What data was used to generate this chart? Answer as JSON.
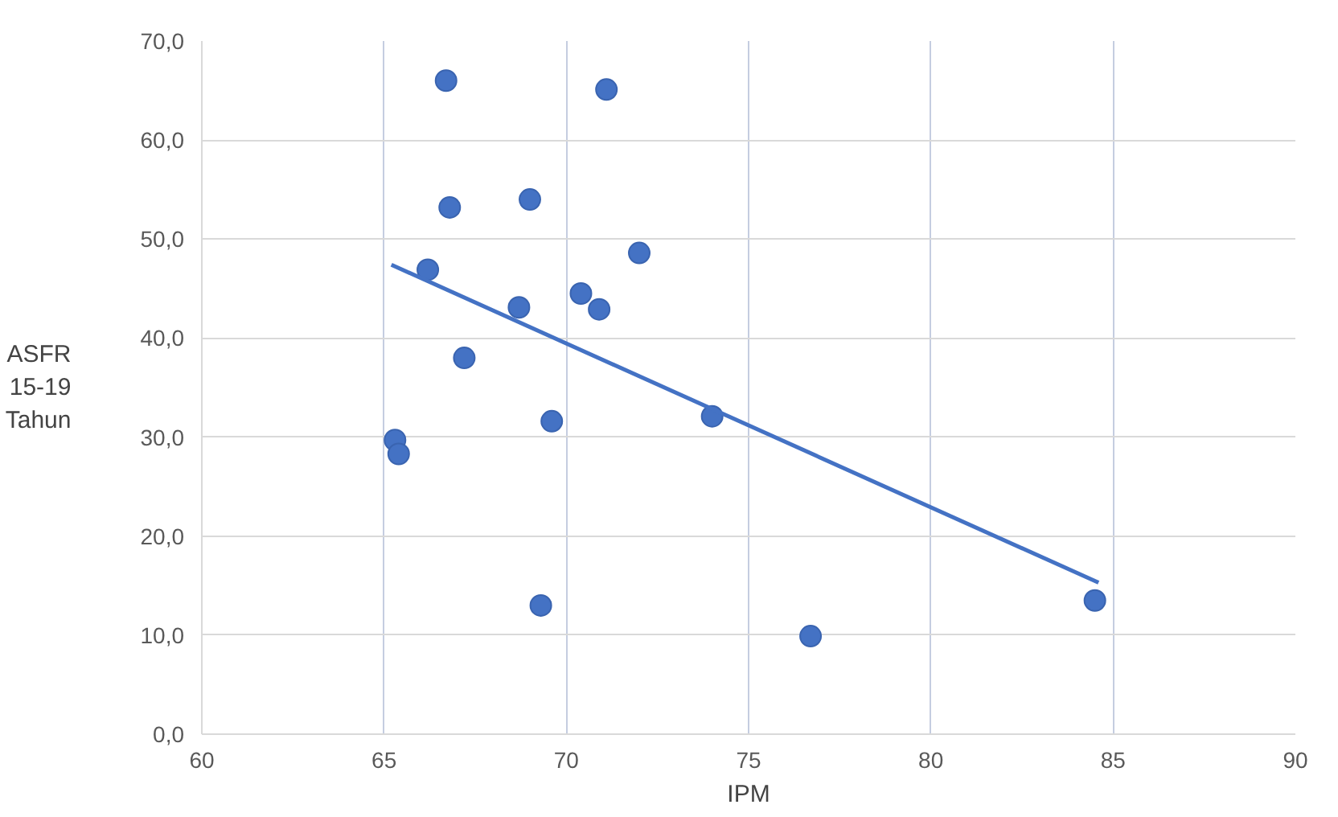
{
  "chart_data": {
    "type": "scatter",
    "xlabel": "IPM",
    "ylabel": "ASFR\n15-19\nTahun",
    "xlim": [
      60,
      90
    ],
    "xticks": [
      60,
      65,
      70,
      75,
      80,
      85,
      90
    ],
    "ylim": [
      0,
      70
    ],
    "yticks": [
      {
        "value": 0,
        "label": "0,0"
      },
      {
        "value": 10,
        "label": "10,0"
      },
      {
        "value": 20,
        "label": "20,0"
      },
      {
        "value": 30,
        "label": "30,0"
      },
      {
        "value": 40,
        "label": "40,0"
      },
      {
        "value": 50,
        "label": "50,0"
      },
      {
        "value": 60,
        "label": "60,0"
      },
      {
        "value": 70,
        "label": "70,0"
      }
    ],
    "grid": true,
    "series": [
      {
        "marker": "circle",
        "color": "#4472c4",
        "x": [
          66.7,
          71.1,
          66.8,
          69.0,
          72.0,
          66.2,
          68.7,
          70.4,
          70.9,
          67.2,
          69.6,
          74.0,
          65.3,
          65.4,
          69.3,
          76.7,
          84.5
        ],
        "values": [
          66.0,
          65.1,
          53.2,
          54.0,
          48.6,
          46.9,
          43.1,
          44.5,
          42.9,
          38.0,
          31.6,
          32.1,
          29.7,
          28.3,
          13.0,
          9.9,
          13.5
        ]
      },
      {
        "type": "line",
        "color": "#4472c4",
        "x": [
          65.2,
          84.6
        ],
        "values": [
          47.4,
          15.3
        ]
      }
    ]
  }
}
